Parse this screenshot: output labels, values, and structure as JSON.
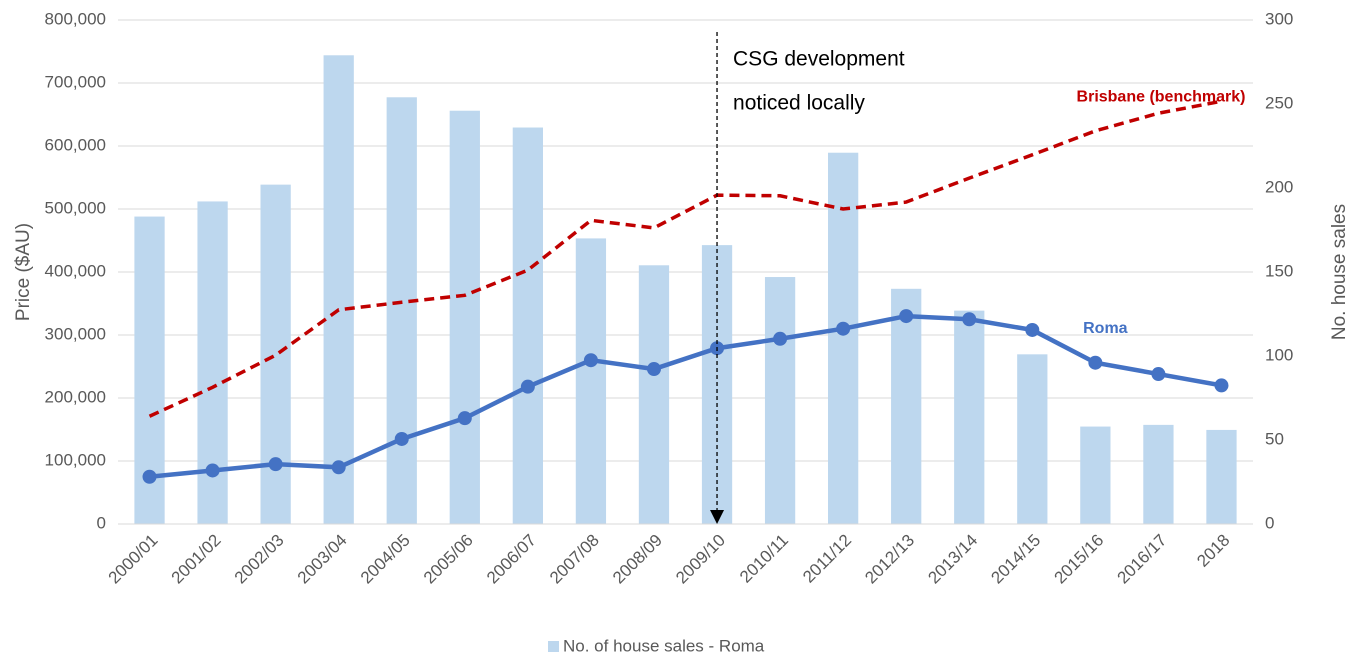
{
  "chart_data": {
    "type": "bar_line_combo",
    "categories": [
      "2000/01",
      "2001/02",
      "2002/03",
      "2003/04",
      "2004/05",
      "2005/06",
      "2006/07",
      "2007/08",
      "2008/09",
      "2009/10",
      "2010/11",
      "2011/12",
      "2012/13",
      "2013/14",
      "2014/15",
      "2015/16",
      "2016/17",
      "2018"
    ],
    "series": [
      {
        "name": "No. of house sales - Roma",
        "type": "bar",
        "axis": "y2",
        "color": "#bdd7ee",
        "values": [
          183,
          192,
          202,
          279,
          254,
          246,
          236,
          170,
          154,
          166,
          147,
          221,
          140,
          127,
          101,
          58,
          59,
          56
        ]
      },
      {
        "name": "Roma",
        "type": "line",
        "color": "#4472c4",
        "values": [
          75000,
          85000,
          95000,
          90000,
          135000,
          168000,
          218000,
          260000,
          246000,
          279000,
          294000,
          310000,
          330000,
          325000,
          308000,
          256000,
          238000,
          220000
        ]
      },
      {
        "name": "Brisbane (benchmark)",
        "type": "dashed-line",
        "color": "#c00000",
        "values": [
          171000,
          217000,
          268000,
          340000,
          352000,
          363000,
          403000,
          482000,
          470000,
          522000,
          521000,
          500000,
          511000,
          549000,
          586000,
          624000,
          652000,
          671000
        ]
      }
    ],
    "ylabel": "Price ($AU)",
    "y2label": "No. house sales",
    "ylim": [
      0,
      800000
    ],
    "yticks": [
      0,
      {
        "value": 100000,
        "label": "100,000"
      },
      {
        "value": 200000,
        "label": "200,000"
      },
      {
        "value": 300000,
        "label": "300,000"
      },
      {
        "value": 400000,
        "label": "400,000"
      },
      {
        "value": 500000,
        "label": "500,000"
      },
      {
        "value": 600000,
        "label": "600,000"
      },
      {
        "value": 700000,
        "label": "700,000"
      },
      {
        "value": 800000,
        "label": "800,000"
      }
    ],
    "y2lim": [
      0,
      300
    ],
    "y2ticks": [
      0,
      50,
      100,
      150,
      200,
      250,
      300
    ],
    "grid": true,
    "legend": "bottom",
    "annotation": {
      "lines": [
        "CSG development",
        "noticed locally"
      ],
      "category": "2009/10"
    }
  }
}
